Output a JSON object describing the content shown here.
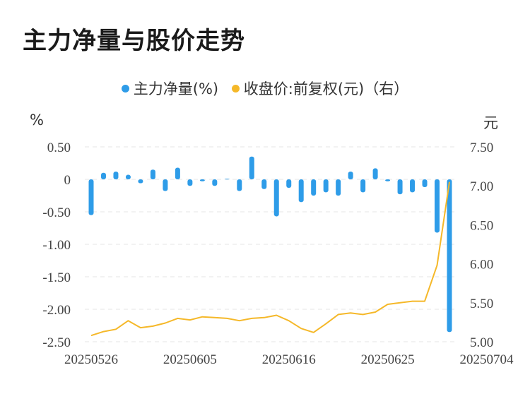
{
  "chart_data": {
    "type": "bar+line",
    "title": "主力净量与股价走势",
    "legend": [
      {
        "name": "主力净量(%)",
        "color": "#2e9ce8"
      },
      {
        "name": "收盘价:前复权(元)（右）",
        "color": "#f5b829"
      }
    ],
    "left_unit": "%",
    "right_unit": "元",
    "left_ticks": [
      "0.50",
      "0",
      "-0.50",
      "-1.00",
      "-1.50",
      "-2.00",
      "-2.50"
    ],
    "left_tick_values": [
      0.5,
      0,
      -0.5,
      -1.0,
      -1.5,
      -2.0,
      -2.5
    ],
    "right_ticks": [
      "7.50",
      "7.00",
      "6.50",
      "6.00",
      "5.50",
      "5.00"
    ],
    "right_tick_values": [
      7.5,
      7.0,
      6.5,
      6.0,
      5.5,
      5.0
    ],
    "left_ylim": [
      -2.5,
      0.5
    ],
    "right_ylim": [
      5.0,
      7.5
    ],
    "x_tick_labels": [
      "20250526",
      "20250605",
      "20250616",
      "20250625",
      "20250704"
    ],
    "x_tick_indices": [
      0,
      8,
      16,
      24,
      32
    ],
    "series": [
      {
        "name": "主力净量(%)",
        "kind": "bar",
        "values": [
          -0.55,
          0.1,
          0.12,
          0.07,
          -0.06,
          0.15,
          -0.18,
          0.18,
          -0.1,
          -0.03,
          -0.1,
          0.01,
          -0.18,
          0.35,
          -0.15,
          -0.57,
          -0.13,
          -0.35,
          -0.25,
          -0.2,
          -0.25,
          0.12,
          -0.2,
          0.17,
          -0.03,
          -0.23,
          -0.2,
          -0.12,
          -0.82,
          -2.35
        ]
      },
      {
        "name": "收盘价:前复权(元)（右）",
        "kind": "line",
        "values": [
          5.08,
          5.13,
          5.16,
          5.27,
          5.18,
          5.2,
          5.24,
          5.3,
          5.28,
          5.32,
          5.31,
          5.3,
          5.27,
          5.3,
          5.31,
          5.34,
          5.27,
          5.17,
          5.12,
          5.23,
          5.35,
          5.37,
          5.35,
          5.38,
          5.48,
          5.5,
          5.52,
          5.52,
          5.98,
          7.05
        ]
      }
    ]
  }
}
